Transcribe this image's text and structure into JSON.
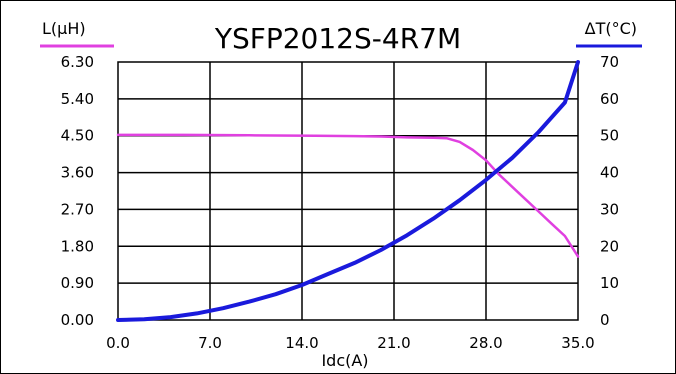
{
  "chart_data": {
    "type": "line",
    "title": "YSFP2012S-4R7M",
    "xlabel": "Idc(A)",
    "y_left_label": "L(μH)",
    "y_right_label": "ΔT(°C)",
    "xlim": [
      0,
      35
    ],
    "y_left_lim": [
      0,
      6.3
    ],
    "y_right_lim": [
      0,
      70
    ],
    "x_ticks": [
      "0.0",
      "7.0",
      "14.0",
      "21.0",
      "28.0",
      "35.0"
    ],
    "y_left_ticks": [
      "0.00",
      "0.90",
      "1.80",
      "2.70",
      "3.60",
      "4.50",
      "5.40",
      "6.30"
    ],
    "y_right_ticks": [
      "0",
      "10",
      "20",
      "30",
      "40",
      "50",
      "60",
      "70"
    ],
    "grid": true,
    "series": [
      {
        "axis": "left",
        "color": "#e040e0",
        "x": [
          0,
          5,
          10,
          15,
          18,
          20,
          22,
          24,
          25,
          26,
          27,
          28,
          29,
          30,
          31,
          32,
          33,
          34,
          35
        ],
        "y": [
          4.52,
          4.52,
          4.51,
          4.5,
          4.49,
          4.48,
          4.46,
          4.45,
          4.44,
          4.35,
          4.15,
          3.9,
          3.55,
          3.25,
          2.95,
          2.65,
          2.35,
          2.05,
          1.55
        ]
      },
      {
        "axis": "right",
        "color": "#1a1adc",
        "x": [
          0,
          2,
          4,
          6,
          8,
          10,
          12,
          14,
          16,
          18,
          20,
          22,
          24,
          26,
          28,
          30,
          32,
          34,
          35
        ],
        "y": [
          0,
          0.2,
          0.8,
          1.8,
          3.2,
          5,
          7,
          9.5,
          12.5,
          15.5,
          19,
          23,
          27.5,
          32.5,
          38,
          44,
          51,
          59,
          70
        ]
      }
    ]
  }
}
